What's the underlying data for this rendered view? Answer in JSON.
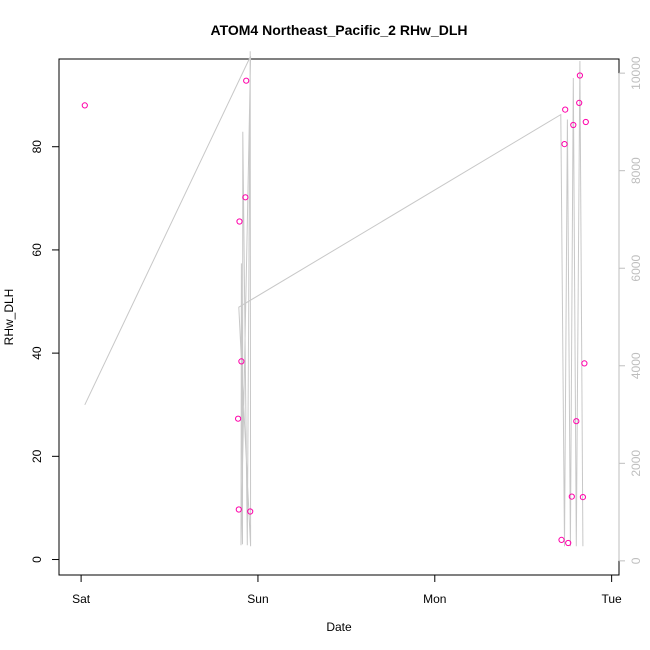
{
  "chart_data": {
    "type": "scatter",
    "title": "ATOM4 Northeast_Pacific_2 RHw_DLH",
    "xlabel": "Date",
    "ylabel": "RHw_DLH",
    "x_ticks": [
      {
        "t": 0,
        "label": "Sat"
      },
      {
        "t": 24,
        "label": "Sun"
      },
      {
        "t": 48,
        "label": "Mon"
      },
      {
        "t": 72,
        "label": "Tue"
      }
    ],
    "x_unit": "hours since Sat 00:00",
    "xlim": [
      -3,
      73
    ],
    "ylim": [
      -3,
      97
    ],
    "y_ticks": [
      0,
      20,
      40,
      60,
      80
    ],
    "right_axis": {
      "ylim": [
        -290,
        10290
      ],
      "ticks": [
        0,
        2000,
        4000,
        6000,
        8000,
        10000
      ],
      "color": "#bebebe"
    },
    "grid": false,
    "series": [
      {
        "type": "points",
        "color": "#ff00aa",
        "points": [
          [
            0.5,
            88
          ],
          [
            21.3,
            27.3
          ],
          [
            21.4,
            9.7
          ],
          [
            21.5,
            65.5
          ],
          [
            21.75,
            38.4
          ],
          [
            22.3,
            70.2
          ],
          [
            22.4,
            92.8
          ],
          [
            22.95,
            9.3
          ],
          [
            65.2,
            3.8
          ],
          [
            65.6,
            80.5
          ],
          [
            65.7,
            87.2
          ],
          [
            66.1,
            3.2
          ],
          [
            66.6,
            12.2
          ],
          [
            66.8,
            84.2
          ],
          [
            67.2,
            26.8
          ],
          [
            67.6,
            88.5
          ],
          [
            67.7,
            93.8
          ],
          [
            68.1,
            12.1
          ],
          [
            68.3,
            38.0
          ],
          [
            68.5,
            84.8
          ]
        ]
      },
      {
        "type": "line",
        "color": "#c8c8c8",
        "axis": "right",
        "points": [
          [
            0.5,
            3200
          ],
          [
            23.0,
            10350
          ],
          [
            21.7,
            320
          ],
          [
            21.75,
            6100
          ],
          [
            21.9,
            340
          ],
          [
            21.95,
            8800
          ],
          [
            22.55,
            320
          ],
          [
            22.95,
            10450
          ],
          [
            23.0,
            300
          ],
          [
            21.4,
            5200
          ],
          [
            65.1,
            9150
          ],
          [
            65.6,
            300
          ],
          [
            66.0,
            9050
          ],
          [
            66.4,
            300
          ],
          [
            66.8,
            9900
          ],
          [
            67.2,
            300
          ],
          [
            67.7,
            10250
          ],
          [
            68.1,
            300
          ]
        ]
      }
    ]
  }
}
